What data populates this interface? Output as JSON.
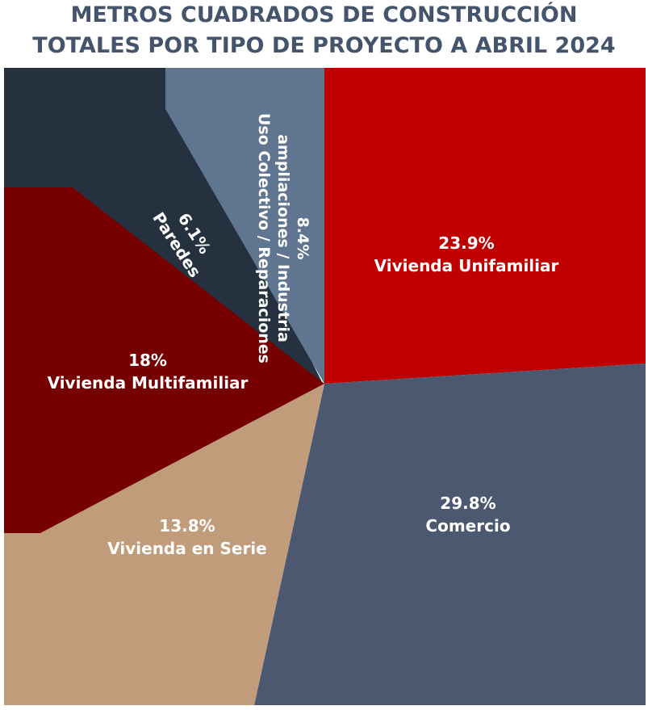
{
  "title_lines": [
    "METROS CUADRADOS DE CONSTRUCCIÓN",
    "TOTALES POR TIPO DE PROYECTO A ABRIL 2024"
  ],
  "chart_data": {
    "type": "pie",
    "title": "METROS CUADRADOS DE CONSTRUCCIÓN TOTALES POR TIPO DE PROYECTO A ABRIL 2024",
    "unit": "%",
    "slices": [
      {
        "pct": "23.9%",
        "name": "Vivienda Unifamiliar",
        "value": 23.9,
        "color": "#c00000"
      },
      {
        "pct": "29.8%",
        "name": "Comercio",
        "value": 29.8,
        "color": "#4b586f"
      },
      {
        "pct": "13.8%",
        "name": "Vivienda en Serie",
        "value": 13.8,
        "color": "#c09c7a"
      },
      {
        "pct": "18%",
        "name": "Vivienda Multifamiliar",
        "value": 18,
        "color": "#760000"
      },
      {
        "pct": "6.1%",
        "name": "Paredes",
        "value": 6.1,
        "color": "#263140"
      },
      {
        "pct": "8.4%",
        "name_lines": [
          "ampliaciones / Industria",
          "Uso Colectivo / Reparaciones"
        ],
        "value": 8.4,
        "color": "#5f7590"
      }
    ]
  }
}
